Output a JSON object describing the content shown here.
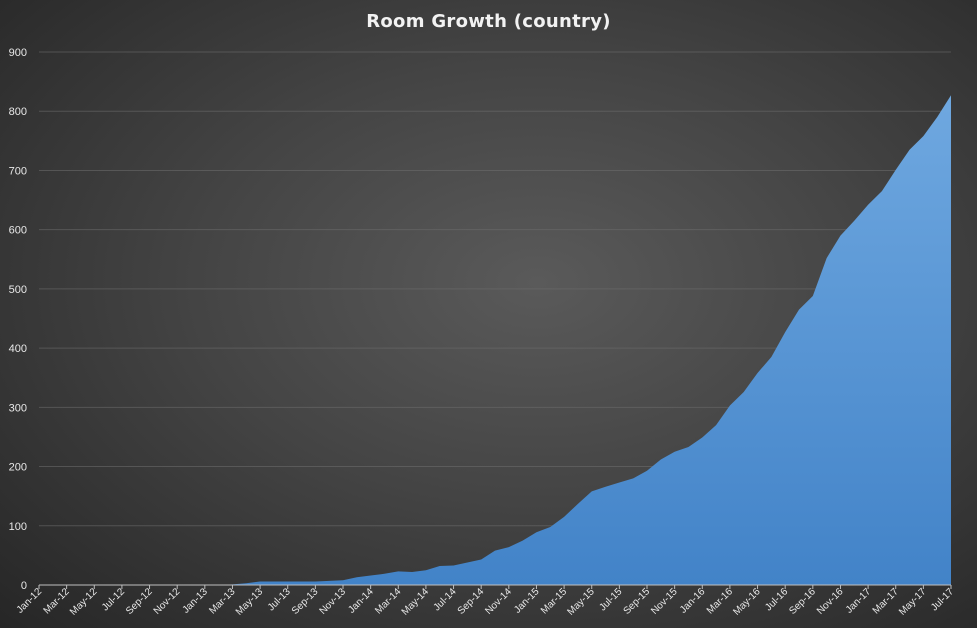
{
  "chart_data": {
    "type": "area",
    "title": "Room Growth (country)",
    "xlabel": "",
    "ylabel": "",
    "ylim": [
      0,
      900
    ],
    "yticks": [
      0,
      100,
      200,
      300,
      400,
      500,
      600,
      700,
      800,
      900
    ],
    "grid": true,
    "legend": "none",
    "fill_color": "#5b9bd5",
    "fill_color_dark": "#4283c8",
    "x": [
      "Jan-12",
      "Feb-12",
      "Mar-12",
      "Apr-12",
      "May-12",
      "Jun-12",
      "Jul-12",
      "Aug-12",
      "Sep-12",
      "Oct-12",
      "Nov-12",
      "Dec-12",
      "Jan-13",
      "Feb-13",
      "Mar-13",
      "Apr-13",
      "May-13",
      "Jun-13",
      "Jul-13",
      "Aug-13",
      "Sep-13",
      "Oct-13",
      "Nov-13",
      "Dec-13",
      "Jan-14",
      "Feb-14",
      "Mar-14",
      "Apr-14",
      "May-14",
      "Jun-14",
      "Jul-14",
      "Aug-14",
      "Sep-14",
      "Oct-14",
      "Nov-14",
      "Dec-14",
      "Jan-15",
      "Feb-15",
      "Mar-15",
      "Apr-15",
      "May-15",
      "Jun-15",
      "Jul-15",
      "Aug-15",
      "Sep-15",
      "Oct-15",
      "Nov-15",
      "Dec-15",
      "Jan-16",
      "Feb-16",
      "Mar-16",
      "Apr-16",
      "May-16",
      "Jun-16",
      "Jul-16",
      "Aug-16",
      "Sep-16",
      "Oct-16",
      "Nov-16",
      "Dec-16",
      "Jan-17",
      "Feb-17",
      "Mar-17",
      "Apr-17",
      "May-17",
      "Jun-17",
      "Jul-17"
    ],
    "x_tick_labels": [
      "Jan-12",
      "Mar-12",
      "May-12",
      "Jul-12",
      "Sep-12",
      "Nov-12",
      "Jan-13",
      "Mar-13",
      "May-13",
      "Jul-13",
      "Sep-13",
      "Nov-13",
      "Jan-14",
      "Mar-14",
      "May-14",
      "Jul-14",
      "Sep-14",
      "Nov-14",
      "Jan-15",
      "Mar-15",
      "May-15",
      "Jul-15",
      "Sep-15",
      "Nov-15",
      "Jan-16",
      "Mar-16",
      "May-16",
      "Jul-16",
      "Sep-16",
      "Nov-16",
      "Jan-17",
      "Mar-17",
      "May-17",
      "Jul-17"
    ],
    "series": [
      {
        "values": [
          0,
          0,
          0,
          0,
          0,
          0,
          0,
          0,
          0,
          0,
          0,
          0,
          0,
          0,
          1,
          3,
          6,
          6,
          6,
          6,
          6,
          7,
          8,
          13,
          16,
          19,
          23,
          22,
          25,
          32,
          33,
          38,
          43,
          58,
          64,
          75,
          89,
          98,
          115,
          137,
          158,
          166,
          173,
          180,
          193,
          212,
          225,
          233,
          249,
          270,
          303,
          326,
          358,
          385,
          427,
          465,
          488,
          552,
          590,
          615,
          642,
          665,
          701,
          735,
          758,
          790,
          827
        ]
      }
    ]
  }
}
